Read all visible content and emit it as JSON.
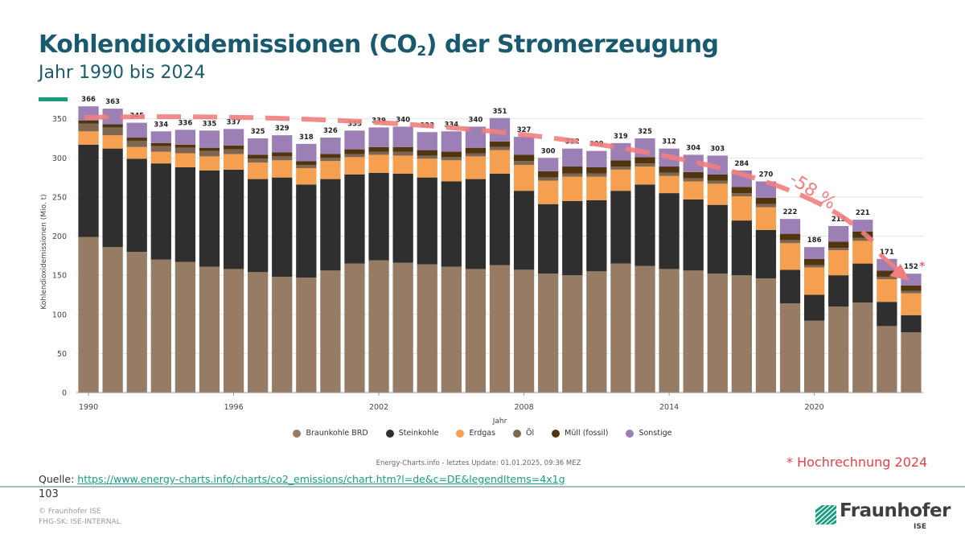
{
  "header": {
    "title_main": "Kohlendioxidemissionen (CO",
    "title_sub": "2",
    "title_rest": ") der Stromerzeugung",
    "subtitle": "Jahr 1990 bis 2024"
  },
  "chart_data": {
    "type": "bar",
    "stacked": true,
    "ylabel": "Kohlendioxidemissionen (Mio. t)",
    "xlabel": "Jahr",
    "ylim": [
      0,
      360
    ],
    "yticks": [
      0,
      50,
      100,
      150,
      200,
      250,
      300,
      350
    ],
    "xtick_labels": [
      "1990",
      "1996",
      "2002",
      "2008",
      "2014",
      "2020"
    ],
    "grid": true,
    "legend_position": "bottom",
    "categories": [
      "1990",
      "1991",
      "1992",
      "1993",
      "1994",
      "1995",
      "1996",
      "1997",
      "1998",
      "1999",
      "2000",
      "2001",
      "2002",
      "2003",
      "2004",
      "2005",
      "2006",
      "2007",
      "2008",
      "2009",
      "2010",
      "2011",
      "2012",
      "2013",
      "2014",
      "2015",
      "2016",
      "2017",
      "2018",
      "2019",
      "2020",
      "2021",
      "2022",
      "2023",
      "2024"
    ],
    "totals": [
      366,
      363,
      345,
      334,
      336,
      335,
      337,
      325,
      329,
      318,
      326,
      335,
      339,
      340,
      333,
      334,
      340,
      351,
      327,
      300,
      312,
      309,
      319,
      325,
      312,
      304,
      303,
      284,
      270,
      222,
      186,
      213,
      221,
      171,
      152
    ],
    "series": [
      {
        "name": "Braunkohle BRD",
        "color": "#967c65",
        "values": [
          199,
          186,
          180,
          170,
          167,
          161,
          158,
          154,
          148,
          147,
          156,
          165,
          169,
          166,
          164,
          161,
          158,
          163,
          157,
          152,
          150,
          155,
          165,
          162,
          158,
          156,
          152,
          150,
          146,
          114,
          92,
          110,
          115,
          85,
          77
        ]
      },
      {
        "name": "Steinkohle",
        "color": "#2f2f2f",
        "values": [
          118,
          126,
          119,
          123,
          121,
          123,
          127,
          119,
          127,
          119,
          117,
          114,
          112,
          114,
          111,
          109,
          115,
          117,
          101,
          89,
          95,
          91,
          93,
          104,
          97,
          91,
          88,
          70,
          62,
          43,
          33,
          40,
          50,
          31,
          22
        ]
      },
      {
        "name": "Erdgas",
        "color": "#f5a050",
        "values": [
          17,
          17,
          15,
          15,
          18,
          18,
          20,
          21,
          22,
          21,
          23,
          22,
          23,
          23,
          24,
          27,
          29,
          30,
          33,
          30,
          31,
          30,
          27,
          23,
          22,
          23,
          27,
          31,
          29,
          34,
          35,
          32,
          29,
          29,
          28
        ]
      },
      {
        "name": "Öl",
        "color": "#7e6650",
        "values": [
          10,
          10,
          8,
          7,
          7,
          7,
          6,
          5,
          5,
          4,
          4,
          4,
          4,
          5,
          4,
          4,
          4,
          4,
          5,
          4,
          4,
          4,
          4,
          4,
          4,
          4,
          4,
          4,
          4,
          4,
          3,
          3,
          4,
          3,
          3
        ]
      },
      {
        "name": "Müll (fossil)",
        "color": "#513510",
        "values": [
          4,
          4,
          4,
          4,
          4,
          4,
          5,
          5,
          5,
          5,
          5,
          6,
          6,
          6,
          7,
          7,
          7,
          7,
          8,
          8,
          9,
          8,
          8,
          8,
          8,
          8,
          8,
          8,
          8,
          8,
          8,
          8,
          8,
          8,
          7
        ]
      },
      {
        "name": "Sonstige",
        "color": "#9b7fb5",
        "values": [
          18,
          20,
          19,
          15,
          19,
          22,
          21,
          21,
          22,
          22,
          21,
          24,
          25,
          26,
          23,
          26,
          27,
          30,
          23,
          17,
          23,
          21,
          22,
          24,
          23,
          22,
          24,
          21,
          21,
          19,
          15,
          20,
          15,
          15,
          15
        ]
      }
    ],
    "annotations": {
      "percent_change": "-58 %",
      "asterisk": "*",
      "trend_color": "#f08080"
    }
  },
  "legend": {
    "items": [
      {
        "label": "Braunkohle BRD",
        "color": "#967c65"
      },
      {
        "label": "Steinkohle",
        "color": "#2f2f2f"
      },
      {
        "label": "Erdgas",
        "color": "#f5a050"
      },
      {
        "label": "Öl",
        "color": "#7e6650"
      },
      {
        "label": "Müll (fossil)",
        "color": "#513510"
      },
      {
        "label": "Sonstige",
        "color": "#9b7fb5"
      }
    ]
  },
  "footer": {
    "credit": "Energy-Charts.info - letztes Update: 01.01.2025, 09:36 MEZ",
    "footnote": "* Hochrechnung 2024",
    "source_label": "Quelle:",
    "source_link": "https://www.energy-charts.info/charts/co2_emissions/chart.htm?l=de&c=DE&legendItems=4x1g",
    "page_number": "103",
    "copyright": "© Fraunhofer ISE",
    "classification": "FHG-SK: ISE-INTERNAL",
    "logo_name": "Fraunhofer",
    "logo_sub": "ISE"
  },
  "colors": {
    "title": "#1a5a6e",
    "accent": "#179c7d",
    "footnote": "#e83e4a"
  }
}
